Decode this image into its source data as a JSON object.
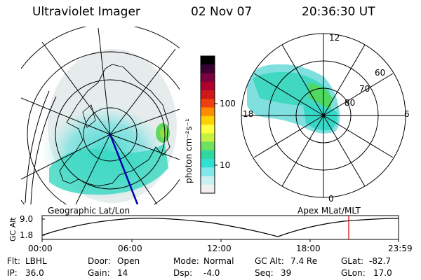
{
  "header": {
    "title": "Ultraviolet Imager",
    "date": "02 Nov 07",
    "time": "20:36:30 UT"
  },
  "left_panel": {
    "caption": "Geographic Lat/Lon"
  },
  "right_panel": {
    "caption": "Apex MLat/MLT",
    "mlt_labels": [
      "12",
      "18",
      "6",
      "0"
    ],
    "mlat_labels": [
      "60",
      "70",
      "80"
    ]
  },
  "colorbar": {
    "unit_label": "photon cm⁻²s⁻¹",
    "ticks": [
      "100",
      "10"
    ],
    "colors": [
      "#000000",
      "#3a0033",
      "#7a0040",
      "#b00030",
      "#d01818",
      "#f04010",
      "#ff8c00",
      "#ffd000",
      "#ffff40",
      "#c8f040",
      "#70e060",
      "#30d8a0",
      "#30e0d0",
      "#80e8e8",
      "#c8f0f0",
      "#f0f0f0"
    ]
  },
  "timeline": {
    "axis_label": "GC Alt",
    "y_ticks": [
      "9.0",
      "1.8"
    ],
    "x_ticks": [
      "00:00",
      "06:00",
      "12:00",
      "18:00",
      "23:59"
    ],
    "marker_color": "#cc0000"
  },
  "status": {
    "row1": [
      {
        "label": "Flt:",
        "value": "LBHL"
      },
      {
        "label": "Door:",
        "value": "Open"
      },
      {
        "label": "Mode:",
        "value": "Normal"
      },
      {
        "label": "GC Alt:",
        "value": "7.4 Re"
      },
      {
        "label": "GLat:",
        "value": "-82.7"
      }
    ],
    "row2": [
      {
        "label": "IP:",
        "value": "36.0"
      },
      {
        "label": "Gain:",
        "value": "14"
      },
      {
        "label": "Dsp:",
        "value": "-4.0"
      },
      {
        "label": "Seq:",
        "value": "39"
      },
      {
        "label": "GLon:",
        "value": "17.0"
      }
    ]
  }
}
